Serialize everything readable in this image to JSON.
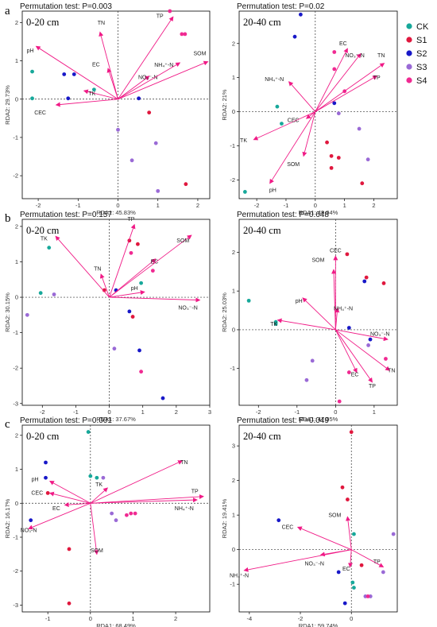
{
  "legend": [
    {
      "label": "CK",
      "color": "#17a89a"
    },
    {
      "label": "S1",
      "color": "#e0183e"
    },
    {
      "label": "S2",
      "color": "#1818c8"
    },
    {
      "label": "S3",
      "color": "#9a6ad6"
    },
    {
      "label": "S4",
      "color": "#f02a92"
    }
  ],
  "panel_letters": [
    "a",
    "b",
    "c"
  ],
  "arrow_color": "#f01a86",
  "chart_data": [
    {
      "type": "scatter",
      "row": 0,
      "col": 0,
      "title": "Permutation test: P=0.003",
      "depth": "0-20 cm",
      "xlabel": "RDA1: 45.83%",
      "ylabel": "RDA2: 29.73%",
      "xlim": [
        -2.4,
        2.3
      ],
      "ylim": [
        -2.6,
        2.3
      ],
      "xticks": [
        -2,
        -1,
        0,
        1,
        2
      ],
      "yticks": [
        -2,
        -1,
        0,
        1,
        2
      ],
      "points": [
        {
          "g": 0,
          "x": -2.15,
          "y": 0.72
        },
        {
          "g": 0,
          "x": -2.15,
          "y": 0.02
        },
        {
          "g": 0,
          "x": -0.6,
          "y": 0.25
        },
        {
          "g": 2,
          "x": -1.35,
          "y": 0.65
        },
        {
          "g": 2,
          "x": -1.1,
          "y": 0.65
        },
        {
          "g": 2,
          "x": -1.25,
          "y": 0.02
        },
        {
          "g": 2,
          "x": 0.52,
          "y": 0.02
        },
        {
          "g": 1,
          "x": 0.78,
          "y": -0.35
        },
        {
          "g": 1,
          "x": 1.7,
          "y": -2.22
        },
        {
          "g": 3,
          "x": 0.0,
          "y": -0.8
        },
        {
          "g": 3,
          "x": 0.35,
          "y": -1.6
        },
        {
          "g": 3,
          "x": 0.95,
          "y": -1.15
        },
        {
          "g": 3,
          "x": 1.0,
          "y": -2.4
        },
        {
          "g": 4,
          "x": 1.3,
          "y": 2.3
        },
        {
          "g": 4,
          "x": 1.6,
          "y": 1.7
        },
        {
          "g": 4,
          "x": 1.68,
          "y": 1.7
        }
      ],
      "vectors": [
        {
          "label": "pH",
          "x": -2.05,
          "y": 1.38,
          "lx": -2.2,
          "ly": 1.22
        },
        {
          "label": "TN",
          "x": -0.45,
          "y": 1.75,
          "lx": -0.42,
          "ly": 1.95
        },
        {
          "label": "EC",
          "x": -0.25,
          "y": 0.8,
          "lx": -0.55,
          "ly": 0.86
        },
        {
          "label": "TK",
          "x": -0.85,
          "y": 0.22,
          "lx": -0.65,
          "ly": 0.1
        },
        {
          "label": "CEC",
          "x": -1.55,
          "y": -0.15,
          "lx": -1.95,
          "ly": -0.4
        },
        {
          "label": "NO₃⁻-N",
          "x": 0.78,
          "y": 0.6,
          "lx": 0.75,
          "ly": 0.52
        },
        {
          "label": "NH₄⁺-N",
          "x": 1.55,
          "y": 0.95,
          "lx": 1.15,
          "ly": 0.85
        },
        {
          "label": "TP",
          "x": 1.38,
          "y": 2.15,
          "lx": 1.05,
          "ly": 2.12
        },
        {
          "label": "SOM",
          "x": 2.25,
          "y": 0.98,
          "lx": 2.05,
          "ly": 1.15
        }
      ]
    },
    {
      "type": "scatter",
      "row": 0,
      "col": 1,
      "title": "Permutation test: P=0.02",
      "depth": "20-40 cm",
      "xlabel": "RDA1: 49.04%",
      "ylabel": "RDA2: 21%",
      "xlim": [
        -2.6,
        2.8
      ],
      "ylim": [
        -2.55,
        2.95
      ],
      "xticks": [
        -2,
        -1,
        0,
        1,
        2
      ],
      "yticks": [
        -2,
        -1,
        0,
        1,
        2
      ],
      "points": [
        {
          "g": 0,
          "x": -2.4,
          "y": -2.35
        },
        {
          "g": 0,
          "x": -1.3,
          "y": 0.15
        },
        {
          "g": 0,
          "x": -1.15,
          "y": -0.35
        },
        {
          "g": 2,
          "x": -0.5,
          "y": 2.85
        },
        {
          "g": 2,
          "x": -0.7,
          "y": 2.2
        },
        {
          "g": 2,
          "x": 0.65,
          "y": 0.25
        },
        {
          "g": 1,
          "x": 0.4,
          "y": -0.9
        },
        {
          "g": 1,
          "x": 0.55,
          "y": -1.3
        },
        {
          "g": 1,
          "x": 0.55,
          "y": -1.65
        },
        {
          "g": 1,
          "x": 0.8,
          "y": -1.35
        },
        {
          "g": 1,
          "x": 1.6,
          "y": -2.1
        },
        {
          "g": 3,
          "x": 0.8,
          "y": -0.05
        },
        {
          "g": 3,
          "x": 1.5,
          "y": -0.5
        },
        {
          "g": 3,
          "x": 1.8,
          "y": -1.4
        },
        {
          "g": 4,
          "x": 0.65,
          "y": 1.75
        },
        {
          "g": 4,
          "x": 0.65,
          "y": 1.25
        },
        {
          "g": 4,
          "x": 1.0,
          "y": 0.6
        }
      ],
      "vectors": [
        {
          "label": "TK",
          "x": -2.1,
          "y": -0.82,
          "lx": -2.45,
          "ly": -0.9
        },
        {
          "label": "pH",
          "x": -1.55,
          "y": -2.1,
          "lx": -1.45,
          "ly": -2.35
        },
        {
          "label": "SOM",
          "x": -0.4,
          "y": -1.3,
          "lx": -0.75,
          "ly": -1.6
        },
        {
          "label": "CEC",
          "x": -0.3,
          "y": -0.2,
          "lx": -0.75,
          "ly": -0.3
        },
        {
          "label": "NH₄⁺-N",
          "x": -0.9,
          "y": 0.88,
          "lx": -1.4,
          "ly": 0.9
        },
        {
          "label": "EC",
          "x": 1.1,
          "y": 1.85,
          "lx": 0.95,
          "ly": 1.95
        },
        {
          "label": "NO₃⁻-N",
          "x": 1.55,
          "y": 1.7,
          "lx": 1.35,
          "ly": 1.6
        },
        {
          "label": "TN",
          "x": 2.35,
          "y": 1.42,
          "lx": 2.25,
          "ly": 1.6
        },
        {
          "label": "TP",
          "x": 2.1,
          "y": 1.05,
          "lx": 2.1,
          "ly": 0.95
        }
      ]
    },
    {
      "type": "scatter",
      "row": 1,
      "col": 0,
      "title": "Permutation test: P=0.157",
      "depth": "0-20 cm",
      "xlabel": "RDA1: 37.67%",
      "ylabel": "RDA2: 30.15%",
      "xlim": [
        -2.6,
        3.0
      ],
      "ylim": [
        -3.05,
        2.2
      ],
      "xticks": [
        -2,
        -1,
        0,
        1,
        2,
        3
      ],
      "yticks": [
        -3,
        -2,
        -1,
        0,
        1,
        2
      ],
      "points": [
        {
          "g": 0,
          "x": -2.05,
          "y": 0.12
        },
        {
          "g": 0,
          "x": -1.8,
          "y": 1.4
        },
        {
          "g": 0,
          "x": 0.95,
          "y": 0.4
        },
        {
          "g": 2,
          "x": 0.2,
          "y": 0.2
        },
        {
          "g": 2,
          "x": 0.6,
          "y": -0.4
        },
        {
          "g": 2,
          "x": 0.9,
          "y": -1.5
        },
        {
          "g": 2,
          "x": 1.6,
          "y": -2.85
        },
        {
          "g": 1,
          "x": -0.15,
          "y": 0.2
        },
        {
          "g": 1,
          "x": 0.6,
          "y": 1.6
        },
        {
          "g": 1,
          "x": 0.85,
          "y": 1.5
        },
        {
          "g": 1,
          "x": 0.7,
          "y": -0.55
        },
        {
          "g": 3,
          "x": -1.65,
          "y": 0.08
        },
        {
          "g": 3,
          "x": -2.45,
          "y": -0.5
        },
        {
          "g": 3,
          "x": 0.15,
          "y": -1.45
        },
        {
          "g": 4,
          "x": 0.65,
          "y": 1.25
        },
        {
          "g": 4,
          "x": 1.3,
          "y": 0.75
        },
        {
          "g": 4,
          "x": 0.95,
          "y": -2.1
        }
      ],
      "vectors": [
        {
          "label": "TK",
          "x": -1.6,
          "y": 1.72,
          "lx": -1.95,
          "ly": 1.6
        },
        {
          "label": "TP",
          "x": 0.75,
          "y": 2.05,
          "lx": 0.65,
          "ly": 2.15
        },
        {
          "label": "TN",
          "x": -0.25,
          "y": 0.65,
          "lx": -0.35,
          "ly": 0.75
        },
        {
          "label": "EC",
          "x": 1.38,
          "y": 1.08,
          "lx": 1.35,
          "ly": 0.95
        },
        {
          "label": "SOM",
          "x": 2.45,
          "y": 1.75,
          "lx": 2.2,
          "ly": 1.55
        },
        {
          "label": "pH",
          "x": 1.05,
          "y": 0.15,
          "lx": 0.75,
          "ly": 0.2
        },
        {
          "label": "NO₃⁻-N",
          "x": 2.7,
          "y": -0.08,
          "lx": 2.35,
          "ly": -0.35
        }
      ]
    },
    {
      "type": "scatter",
      "row": 1,
      "col": 1,
      "title": "Permutation test: P=0.648",
      "depth": "20-40 cm",
      "xlabel": "RDA1: 47.05%",
      "ylabel": "RDA2: 25.03%",
      "xlim": [
        -2.5,
        1.6
      ],
      "ylim": [
        -1.95,
        2.85
      ],
      "xticks": [
        -2,
        -1,
        0,
        1
      ],
      "yticks": [
        -1,
        0,
        1,
        2
      ],
      "points": [
        {
          "g": 0,
          "x": -2.25,
          "y": 0.75
        },
        {
          "g": 0,
          "x": -1.55,
          "y": 0.2
        },
        {
          "g": 0,
          "x": -1.55,
          "y": 0.15
        },
        {
          "g": 2,
          "x": 0.75,
          "y": 1.25
        },
        {
          "g": 2,
          "x": 0.35,
          "y": 0.05
        },
        {
          "g": 2,
          "x": 0.9,
          "y": -0.25
        },
        {
          "g": 1,
          "x": 0.3,
          "y": 1.95
        },
        {
          "g": 1,
          "x": 0.8,
          "y": 1.35
        },
        {
          "g": 1,
          "x": 1.25,
          "y": 1.2
        },
        {
          "g": 3,
          "x": -0.6,
          "y": -0.8
        },
        {
          "g": 3,
          "x": -0.75,
          "y": -1.3
        },
        {
          "g": 3,
          "x": 0.85,
          "y": -0.4
        },
        {
          "g": 4,
          "x": 0.35,
          "y": -1.1
        },
        {
          "g": 4,
          "x": 1.3,
          "y": -0.75
        },
        {
          "g": 4,
          "x": 0.1,
          "y": -1.85
        }
      ],
      "vectors": [
        {
          "label": "CEC",
          "x": 0.0,
          "y": 1.9,
          "lx": 0.0,
          "ly": 2.0
        },
        {
          "label": "SOM",
          "x": -0.05,
          "y": 1.55,
          "lx": -0.45,
          "ly": 1.75
        },
        {
          "label": "pH",
          "x": -0.85,
          "y": 0.82,
          "lx": -0.95,
          "ly": 0.7
        },
        {
          "label": "NH₄⁺-N",
          "x": 0.05,
          "y": 0.55,
          "lx": 0.2,
          "ly": 0.5
        },
        {
          "label": "TK",
          "x": -1.5,
          "y": 0.25,
          "lx": -1.6,
          "ly": 0.1
        },
        {
          "label": "NO₃⁻-N",
          "x": 1.35,
          "y": -0.25,
          "lx": 1.15,
          "ly": -0.15
        },
        {
          "label": "TN",
          "x": 1.4,
          "y": -1.05,
          "lx": 1.45,
          "ly": -1.1
        },
        {
          "label": "EC",
          "x": 0.55,
          "y": -1.1,
          "lx": 0.5,
          "ly": -1.2
        },
        {
          "label": "TP",
          "x": 0.95,
          "y": -1.35,
          "lx": 0.95,
          "ly": -1.5
        }
      ]
    },
    {
      "type": "scatter",
      "row": 2,
      "col": 0,
      "title": "Permutation test: P=0.001",
      "depth": "0-20 cm",
      "xlabel": "RDA1: 68.49%",
      "ylabel": "RDA2: 16.17%",
      "xlim": [
        -1.6,
        2.8
      ],
      "ylim": [
        -3.2,
        2.3
      ],
      "xticks": [
        -1,
        0,
        1,
        2
      ],
      "yticks": [
        -3,
        -2,
        -1,
        0,
        1,
        2
      ],
      "points": [
        {
          "g": 0,
          "x": -0.05,
          "y": 2.1
        },
        {
          "g": 0,
          "x": 0.0,
          "y": 0.8
        },
        {
          "g": 0,
          "x": 0.15,
          "y": 0.75
        },
        {
          "g": 2,
          "x": -1.05,
          "y": 1.2
        },
        {
          "g": 2,
          "x": -1.05,
          "y": 0.75
        },
        {
          "g": 2,
          "x": -1.4,
          "y": -0.5
        },
        {
          "g": 1,
          "x": -1.0,
          "y": 0.3
        },
        {
          "g": 1,
          "x": -0.5,
          "y": -1.35
        },
        {
          "g": 1,
          "x": -0.5,
          "y": -2.95
        },
        {
          "g": 3,
          "x": 0.3,
          "y": 0.75
        },
        {
          "g": 3,
          "x": 0.6,
          "y": -0.5
        },
        {
          "g": 3,
          "x": 0.5,
          "y": -0.3
        },
        {
          "g": 4,
          "x": 0.85,
          "y": -0.35
        },
        {
          "g": 4,
          "x": 0.95,
          "y": -0.3
        },
        {
          "g": 4,
          "x": 1.05,
          "y": -0.3
        }
      ],
      "vectors": [
        {
          "label": "TN",
          "x": 2.15,
          "y": 1.25,
          "lx": 2.2,
          "ly": 1.15
        },
        {
          "label": "TP",
          "x": 2.65,
          "y": 0.2,
          "lx": 2.45,
          "ly": 0.3
        },
        {
          "label": "NH₄⁺-N",
          "x": 2.5,
          "y": 0.1,
          "lx": 2.2,
          "ly": -0.2
        },
        {
          "label": "pH",
          "x": -0.95,
          "y": 0.65,
          "lx": -1.3,
          "ly": 0.65
        },
        {
          "label": "TK",
          "x": 0.4,
          "y": 0.45,
          "lx": 0.2,
          "ly": 0.5
        },
        {
          "label": "CEC",
          "x": -0.95,
          "y": 0.3,
          "lx": -1.25,
          "ly": 0.25
        },
        {
          "label": "EC",
          "x": -0.6,
          "y": -0.05,
          "lx": -0.8,
          "ly": -0.2
        },
        {
          "label": "NO₃-N",
          "x": -1.45,
          "y": -0.75,
          "lx": -1.45,
          "ly": -0.85
        },
        {
          "label": "SOM",
          "x": 0.15,
          "y": -1.5,
          "lx": 0.15,
          "ly": -1.45
        }
      ]
    },
    {
      "type": "scatter",
      "row": 2,
      "col": 1,
      "title": "Permutation test: P=0.049",
      "depth": "20-40 cm",
      "xlabel": "RDA1: 59.74%",
      "ylabel": "RDA2: 19.41%",
      "xlim": [
        -4.4,
        1.8
      ],
      "ylim": [
        -1.8,
        3.6
      ],
      "xticks": [
        -4,
        -2,
        0
      ],
      "yticks": [
        -1,
        0,
        1,
        2,
        3
      ],
      "points": [
        {
          "g": 1,
          "x": 0.0,
          "y": 3.4
        },
        {
          "g": 1,
          "x": -0.35,
          "y": 1.8
        },
        {
          "g": 1,
          "x": -0.15,
          "y": 1.45
        },
        {
          "g": 1,
          "x": 0.4,
          "y": -0.45
        },
        {
          "g": 0,
          "x": 0.1,
          "y": 0.45
        },
        {
          "g": 0,
          "x": 0.05,
          "y": -0.95
        },
        {
          "g": 0,
          "x": 0.1,
          "y": -1.1
        },
        {
          "g": 2,
          "x": -2.85,
          "y": 0.85
        },
        {
          "g": 2,
          "x": -0.5,
          "y": -0.65
        },
        {
          "g": 2,
          "x": -0.25,
          "y": -1.55
        },
        {
          "g": 3,
          "x": 0.55,
          "y": -1.35
        },
        {
          "g": 3,
          "x": 0.75,
          "y": -1.35
        },
        {
          "g": 3,
          "x": 1.25,
          "y": -0.65
        },
        {
          "g": 3,
          "x": 1.65,
          "y": 0.45
        },
        {
          "g": 4,
          "x": 0.65,
          "y": -1.35
        }
      ],
      "vectors": [
        {
          "label": "SOM",
          "x": -0.15,
          "y": 0.95,
          "lx": -0.65,
          "ly": 0.95
        },
        {
          "label": "CEC",
          "x": -2.1,
          "y": 0.65,
          "lx": -2.5,
          "ly": 0.6
        },
        {
          "label": "NH₄⁺-N",
          "x": -4.2,
          "y": -0.6,
          "lx": -4.4,
          "ly": -0.8
        },
        {
          "label": "NO₃⁻-N",
          "x": -1.2,
          "y": -0.15,
          "lx": -1.45,
          "ly": -0.45
        },
        {
          "label": "EC",
          "x": -0.05,
          "y": -0.5,
          "lx": -0.2,
          "ly": -0.6
        },
        {
          "label": "TP",
          "x": 1.25,
          "y": -0.5,
          "lx": 1.0,
          "ly": -0.4
        }
      ]
    }
  ]
}
